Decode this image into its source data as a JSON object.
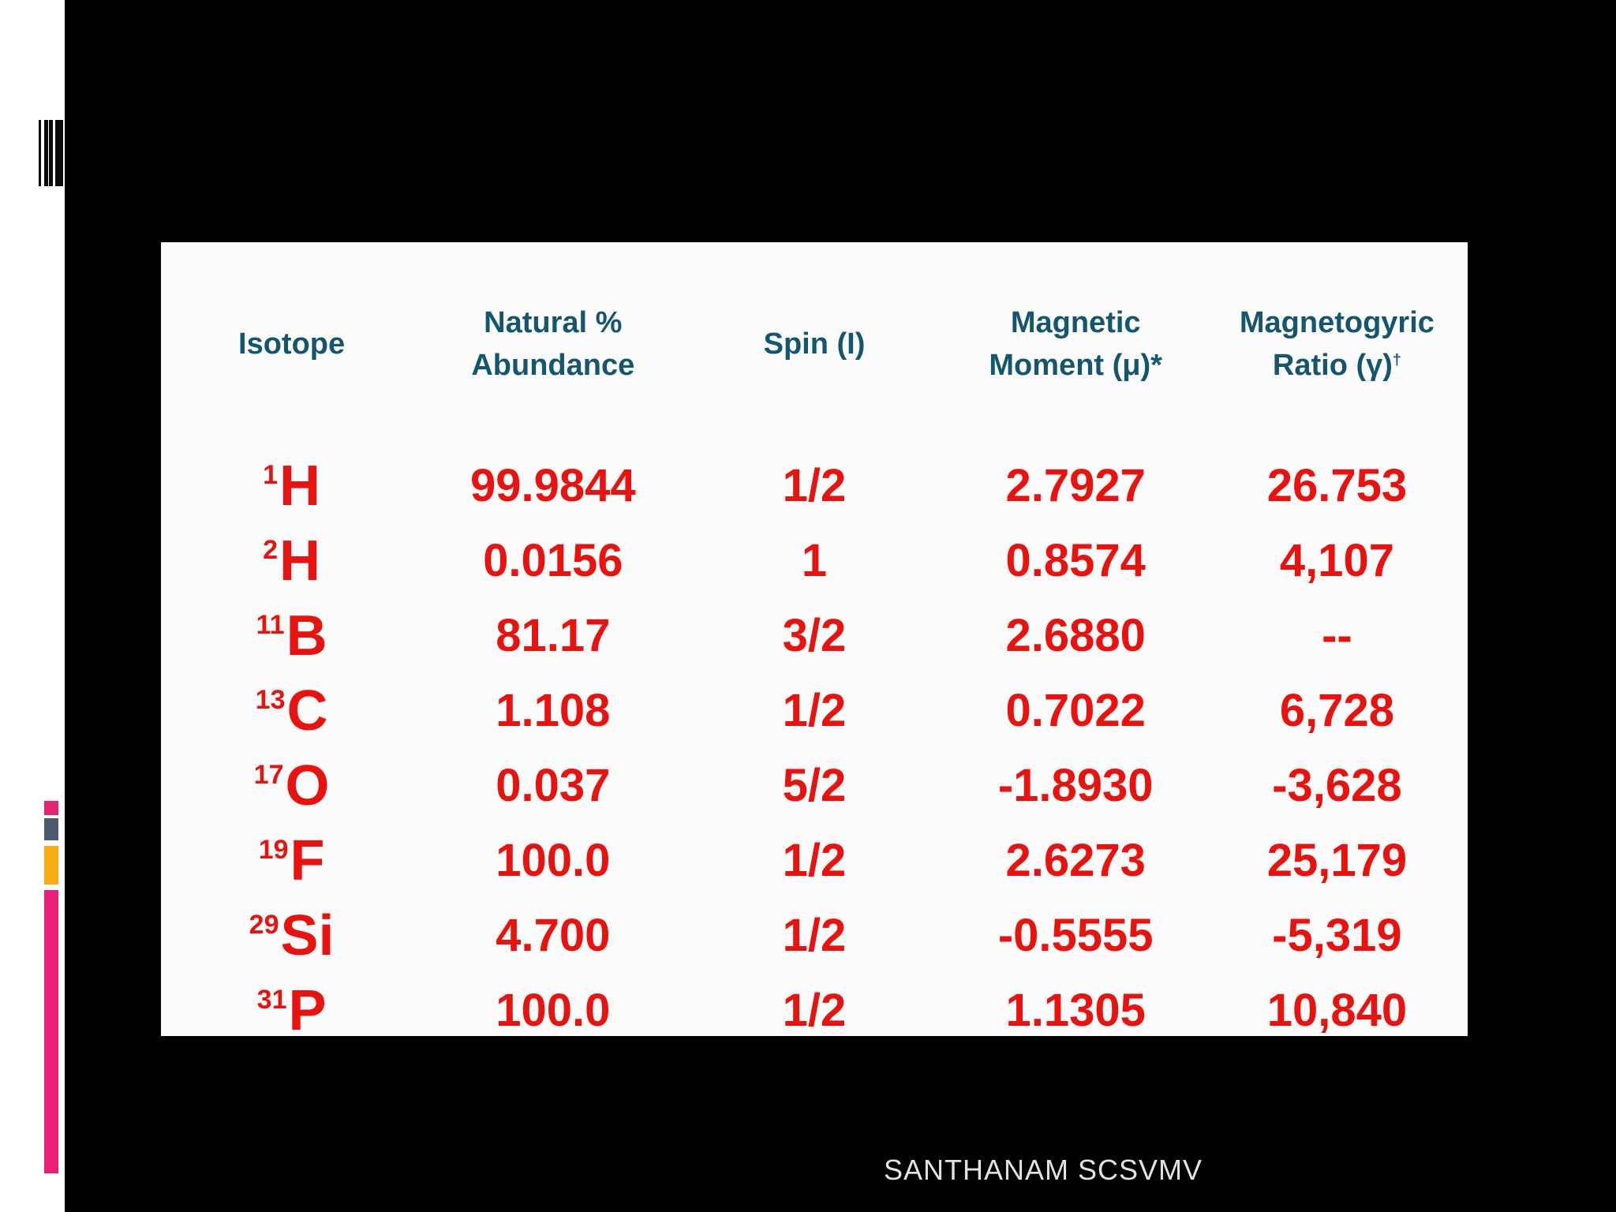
{
  "slide": {
    "footer": {
      "text": "SANTHANAM SCSVMV"
    }
  },
  "icons": {
    "barcode": "barcode-icon"
  },
  "colors": {
    "page_background": "#000000",
    "margin_strip": "#ffffff",
    "table_background": "#fbfbfc",
    "header_teal": "#14576c",
    "value_red": "#e8120f",
    "accent_pink": "#e32470",
    "accent_gray": "#4e5a6e",
    "accent_orange": "#f7ab14",
    "accent_magenta": "#e82077",
    "footer_text": "#dde3e6"
  },
  "chart_data": {
    "type": "table",
    "columns": [
      {
        "lines": [
          "Isotope"
        ]
      },
      {
        "lines": [
          "Natural %",
          "Abundance"
        ]
      },
      {
        "lines": [
          "Spin (I)"
        ]
      },
      {
        "lines": [
          "Magnetic",
          "Moment (μ)*"
        ]
      },
      {
        "lines": [
          "Magnetogyric",
          "Ratio (γ)"
        ],
        "superscript": "†"
      }
    ],
    "rows": [
      {
        "mass": "1",
        "symbol": "H",
        "abundance": "99.9844",
        "spin": "1/2",
        "moment": "2.7927",
        "ratio": "26.753"
      },
      {
        "mass": "2",
        "symbol": "H",
        "abundance": "0.0156",
        "spin": "1",
        "moment": "0.8574",
        "ratio": "4,107"
      },
      {
        "mass": "11",
        "symbol": "B",
        "abundance": "81.17",
        "spin": "3/2",
        "moment": "2.6880",
        "ratio": "--"
      },
      {
        "mass": "13",
        "symbol": "C",
        "abundance": "1.108",
        "spin": "1/2",
        "moment": "0.7022",
        "ratio": "6,728"
      },
      {
        "mass": "17",
        "symbol": "O",
        "abundance": "0.037",
        "spin": "5/2",
        "moment": "-1.8930",
        "ratio": "-3,628"
      },
      {
        "mass": "19",
        "symbol": "F",
        "abundance": "100.0",
        "spin": "1/2",
        "moment": "2.6273",
        "ratio": "25,179"
      },
      {
        "mass": "29",
        "symbol": "Si",
        "abundance": "4.700",
        "spin": "1/2",
        "moment": "-0.5555",
        "ratio": "-5,319"
      },
      {
        "mass": "31",
        "symbol": "P",
        "abundance": "100.0",
        "spin": "1/2",
        "moment": "1.1305",
        "ratio": "10,840"
      }
    ]
  }
}
